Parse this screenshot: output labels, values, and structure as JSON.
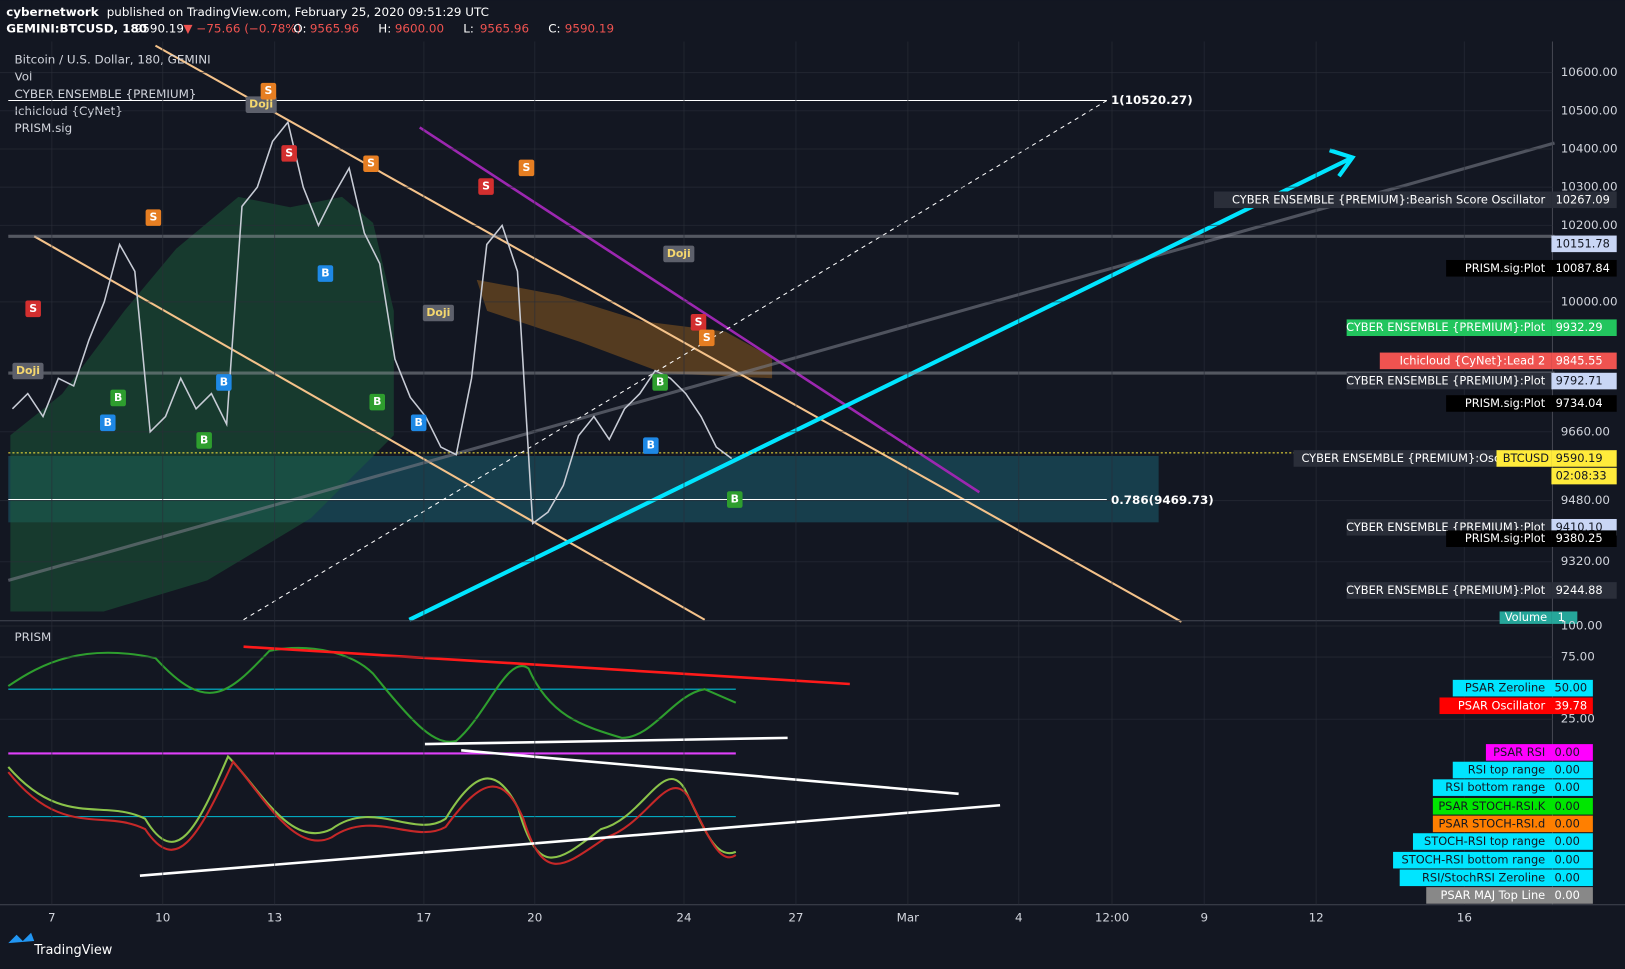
{
  "header": {
    "author": "cybernetwork",
    "published": "published on TradingView.com, February 25, 2020 09:51:29 UTC",
    "symbol": "GEMINI:BTCUSD, 180",
    "last": "9590.19",
    "change": "▼ −75.66 (−0.78%)",
    "ohlc": [
      {
        "k": "O:",
        "v": "9565.96"
      },
      {
        "k": "H:",
        "v": "9600.00"
      },
      {
        "k": "L:",
        "v": "9565.96"
      },
      {
        "k": "C:",
        "v": "9590.19"
      }
    ]
  },
  "legend": [
    "Bitcoin / U.S. Dollar, 180, GEMINI",
    "Vol",
    "CYBER ENSEMBLE {PREMIUM}",
    "Ichicloud {CyNet}",
    "PRISM.sig"
  ],
  "price_axis": [
    {
      "value": 10600,
      "label": "10600.00"
    },
    {
      "value": 10500,
      "label": "10500.00"
    },
    {
      "value": 10400,
      "label": "10400.00"
    },
    {
      "value": 10300,
      "label": "10300.00"
    },
    {
      "value": 10200,
      "label": "10200.00"
    },
    {
      "value": 10000,
      "label": "10000.00"
    },
    {
      "value": 9660,
      "label": "9660.00"
    },
    {
      "value": 9480,
      "label": "9480.00"
    },
    {
      "value": 9320,
      "label": "9320.00"
    }
  ],
  "time_axis": [
    "7",
    "10",
    "13",
    "17",
    "20",
    "24",
    "27",
    "Mar",
    "4",
    "12:00",
    "9",
    "12",
    "16"
  ],
  "price_trace": [
    9720,
    9760,
    9700,
    9800,
    9780,
    9900,
    10000,
    10150,
    10080,
    9660,
    9700,
    9800,
    9720,
    9760,
    9680,
    10250,
    10300,
    10420,
    10470,
    10300,
    10200,
    10280,
    10350,
    10180,
    10100,
    9850,
    9750,
    9700,
    9620,
    9600,
    9800,
    10150,
    10200,
    10080,
    9420,
    9450,
    9520,
    9650,
    9700,
    9640,
    9720,
    9760,
    9820,
    9800,
    9760,
    9700,
    9620,
    9590
  ],
  "fib": [
    "1(10520.27)",
    "0.786(9469.73)"
  ],
  "markers": {
    "doji": "Doji",
    "sell": "S",
    "buy": "B"
  },
  "price_tags": [
    {
      "name": "CYBER ENSEMBLE {PREMIUM}:Bearish Score Oscillator",
      "value": "10267.09",
      "bg": "#2a2e39",
      "fg": "#ffffff"
    },
    {
      "value": "10151.78",
      "bg": "#c9d6f5",
      "fg": "#131722"
    },
    {
      "name": "PRISM.sig:Plot",
      "value": "10087.84",
      "bg": "#000000",
      "fg": "#ffffff"
    },
    {
      "name": "CYBER ENSEMBLE {PREMIUM}:Plot",
      "value": "9932.29",
      "bg": "#22c55e",
      "fg": "#ffffff"
    },
    {
      "name": "Ichicloud {CyNet}:Lead 2",
      "value": "9845.55",
      "bg": "#ef5350",
      "fg": "#ffffff"
    },
    {
      "name": "CYBER ENSEMBLE {PREMIUM}:Plot",
      "value": "9792.71",
      "bg": "#c9d6f5",
      "fg": "#131722"
    },
    {
      "name": "PRISM.sig:Plot",
      "value": "9734.04",
      "bg": "#000000",
      "fg": "#ffffff"
    },
    {
      "name": "CYBER ENSEMBLE {PREMIUM}:Oscillator G",
      "value": "9590.19",
      "bg": "#ffeb3b",
      "fg": "#131722"
    },
    {
      "name": "CYBER ENSEMBLE {PREMIUM}:Plot",
      "value": "9410.10",
      "bg": "#c9d6f5",
      "fg": "#131722"
    },
    {
      "name": "PRISM.sig:Plot",
      "value": "9380.25",
      "bg": "#000000",
      "fg": "#ffffff"
    },
    {
      "name": "CYBER ENSEMBLE {PREMIUM}:Plot",
      "value": "9244.88",
      "bg": "#2a2e39",
      "fg": "#ffffff"
    }
  ],
  "btc_tag": {
    "name": "BTCUSD",
    "countdown": "02:08:33"
  },
  "volume_tag": {
    "name": "Volume",
    "value": "1"
  },
  "prism": {
    "title": "PRISM",
    "axis": [
      {
        "value": 100,
        "label": "100.00"
      },
      {
        "value": 75,
        "label": "75.00"
      },
      {
        "value": 25,
        "label": "25.00"
      }
    ],
    "tags": [
      {
        "name": "PSAR Zeroline",
        "value": "50.00",
        "bg": "#00e5ff"
      },
      {
        "name": "PSAR Oscillator",
        "value": "39.78",
        "bg": "#ff0000"
      },
      {
        "name": "PSAR RSI",
        "value": "0.00",
        "bg": "#ff00ff"
      },
      {
        "name": "RSI top range",
        "value": "0.00",
        "bg": "#00e5ff"
      },
      {
        "name": "RSI bottom range",
        "value": "0.00",
        "bg": "#00e5ff"
      },
      {
        "name": "PSAR STOCH-RSI.K",
        "value": "0.00",
        "bg": "#00e600"
      },
      {
        "name": "PSAR STOCH-RSI.d",
        "value": "0.00",
        "bg": "#ff7f00"
      },
      {
        "name": "STOCH-RSI top range",
        "value": "0.00",
        "bg": "#00e5ff"
      },
      {
        "name": "STOCH-RSI bottom range",
        "value": "0.00",
        "bg": "#00e5ff"
      },
      {
        "name": "RSI/StochRSI Zeroline",
        "value": "0.00",
        "bg": "#00e5ff"
      },
      {
        "name": "PSAR MAJ Top Line",
        "value": "0.00",
        "bg": "#888888"
      }
    ]
  },
  "footer": "TradingView"
}
